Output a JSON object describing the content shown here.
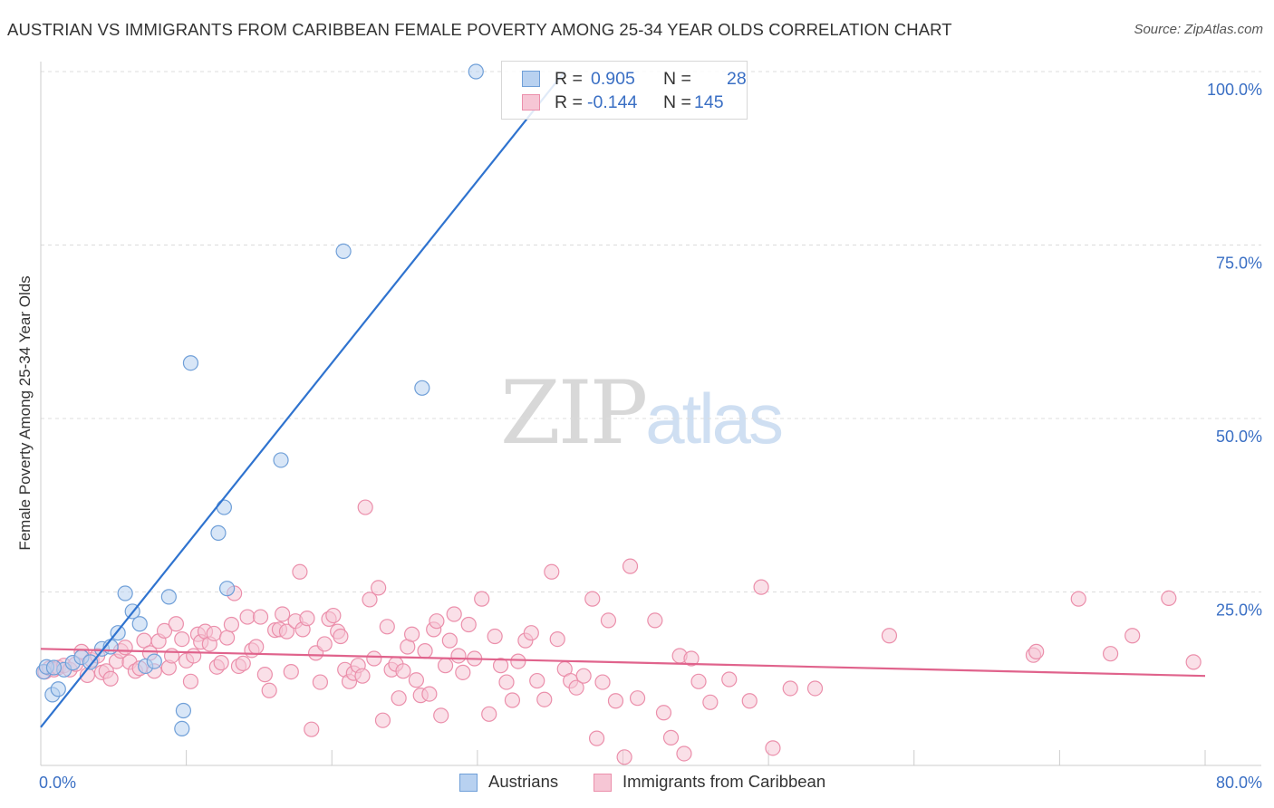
{
  "title": "AUSTRIAN VS IMMIGRANTS FROM CARIBBEAN FEMALE POVERTY AMONG 25-34 YEAR OLDS CORRELATION CHART",
  "source": "Source: ZipAtlas.com",
  "watermark": {
    "part1": "ZIP",
    "part2": "atlas"
  },
  "colors": {
    "blue": "#6f9fd8",
    "blue_fill": "#b8d1f0",
    "blue_line": "#2f73cf",
    "pink": "#eb8fab",
    "pink_fill": "#f6c6d5",
    "pink_line": "#e0638c",
    "grid": "#dcdcdc",
    "tick_label": "#3a6fc4"
  },
  "legend": {
    "rows": [
      {
        "r_label": "R =",
        "r_value": "0.905",
        "n_label": "N =",
        "n_value": "28"
      },
      {
        "r_label": "R =",
        "r_value": "-0.144",
        "n_label": "N =",
        "n_value": "145"
      }
    ]
  },
  "bottom_legend": {
    "austrians": "Austrians",
    "caribbean": "Immigrants from Caribbean"
  },
  "chart_data": {
    "type": "scatter",
    "title": "AUSTRIAN VS IMMIGRANTS FROM CARIBBEAN FEMALE POVERTY AMONG 25-34 YEAR OLDS CORRELATION CHART",
    "xlabel": "",
    "ylabel": "Female Poverty Among 25-34 Year Olds",
    "xlim": [
      0,
      80
    ],
    "ylim": [
      0,
      100
    ],
    "x_tick_labels": [
      "0.0%",
      "80.0%"
    ],
    "y_tick_labels": [
      "25.0%",
      "50.0%",
      "75.0%",
      "100.0%"
    ],
    "y_ticks": [
      25,
      50,
      75,
      100
    ],
    "grid": true,
    "legend_position": "top-center",
    "series": [
      {
        "name": "Austrians",
        "R": 0.905,
        "N": 28,
        "trend": {
          "x0": 0,
          "y0": 5.5,
          "x1": 36,
          "y1": 100
        },
        "points": [
          [
            0.2,
            13.5
          ],
          [
            0.4,
            14.2
          ],
          [
            0.8,
            10.2
          ],
          [
            1.2,
            11.0
          ],
          [
            1.6,
            13.8
          ],
          [
            2.2,
            14.8
          ],
          [
            2.8,
            15.6
          ],
          [
            3.4,
            14.9
          ],
          [
            4.2,
            16.8
          ],
          [
            4.8,
            17.1
          ],
          [
            5.3,
            19.1
          ],
          [
            5.8,
            24.8
          ],
          [
            6.3,
            22.2
          ],
          [
            6.8,
            20.4
          ],
          [
            7.2,
            14.3
          ],
          [
            7.8,
            15.0
          ],
          [
            8.8,
            24.3
          ],
          [
            9.8,
            7.9
          ],
          [
            9.7,
            5.3
          ],
          [
            10.3,
            58.0
          ],
          [
            12.2,
            33.5
          ],
          [
            12.6,
            37.2
          ],
          [
            12.8,
            25.5
          ],
          [
            16.5,
            44.0
          ],
          [
            20.8,
            74.1
          ],
          [
            26.2,
            54.4
          ],
          [
            29.9,
            100.0
          ],
          [
            0.9,
            14.1
          ]
        ]
      },
      {
        "name": "Immigrants from Caribbean",
        "R": -0.144,
        "N": 145,
        "trend": {
          "x0": 0,
          "y0": 16.8,
          "x1": 80,
          "y1": 12.9
        },
        "points": [
          [
            0.3,
            13.5
          ],
          [
            0.6,
            14.0
          ],
          [
            0.9,
            13.8
          ],
          [
            1.2,
            14.1
          ],
          [
            1.6,
            14.4
          ],
          [
            2.0,
            13.8
          ],
          [
            2.4,
            14.6
          ],
          [
            2.8,
            16.4
          ],
          [
            3.2,
            13.0
          ],
          [
            3.5,
            15.2
          ],
          [
            3.9,
            15.8
          ],
          [
            4.2,
            13.4
          ],
          [
            4.5,
            13.6
          ],
          [
            4.8,
            12.5
          ],
          [
            5.2,
            15.0
          ],
          [
            5.5,
            16.5
          ],
          [
            5.8,
            17.0
          ],
          [
            6.1,
            14.9
          ],
          [
            6.5,
            13.6
          ],
          [
            6.8,
            14.0
          ],
          [
            7.1,
            18.0
          ],
          [
            7.5,
            16.2
          ],
          [
            7.8,
            13.6
          ],
          [
            8.1,
            17.9
          ],
          [
            8.5,
            19.4
          ],
          [
            8.8,
            14.1
          ],
          [
            9.0,
            15.8
          ],
          [
            9.3,
            20.4
          ],
          [
            9.7,
            18.2
          ],
          [
            10.0,
            15.1
          ],
          [
            10.3,
            12.1
          ],
          [
            10.5,
            15.8
          ],
          [
            10.8,
            18.9
          ],
          [
            11.0,
            17.8
          ],
          [
            11.3,
            19.3
          ],
          [
            11.6,
            17.5
          ],
          [
            11.9,
            19.0
          ],
          [
            12.1,
            14.2
          ],
          [
            12.4,
            14.8
          ],
          [
            12.8,
            18.4
          ],
          [
            13.1,
            20.3
          ],
          [
            13.3,
            24.8
          ],
          [
            13.6,
            14.3
          ],
          [
            13.9,
            14.7
          ],
          [
            14.2,
            21.4
          ],
          [
            14.5,
            16.6
          ],
          [
            14.8,
            17.1
          ],
          [
            15.1,
            21.4
          ],
          [
            15.4,
            13.1
          ],
          [
            15.7,
            10.8
          ],
          [
            16.1,
            19.5
          ],
          [
            16.4,
            19.6
          ],
          [
            16.6,
            21.8
          ],
          [
            16.9,
            19.3
          ],
          [
            17.2,
            13.5
          ],
          [
            17.5,
            20.8
          ],
          [
            17.8,
            27.9
          ],
          [
            18.0,
            19.6
          ],
          [
            18.3,
            21.2
          ],
          [
            18.6,
            5.2
          ],
          [
            18.9,
            16.2
          ],
          [
            19.2,
            12.0
          ],
          [
            19.5,
            17.5
          ],
          [
            19.8,
            21.1
          ],
          [
            20.1,
            21.6
          ],
          [
            20.4,
            19.3
          ],
          [
            20.6,
            18.6
          ],
          [
            20.9,
            13.8
          ],
          [
            21.2,
            12.1
          ],
          [
            21.5,
            13.3
          ],
          [
            21.8,
            14.4
          ],
          [
            22.1,
            12.9
          ],
          [
            22.3,
            37.2
          ],
          [
            22.6,
            23.9
          ],
          [
            22.9,
            15.4
          ],
          [
            23.2,
            25.6
          ],
          [
            23.5,
            6.5
          ],
          [
            23.8,
            20.0
          ],
          [
            24.1,
            13.8
          ],
          [
            24.4,
            14.6
          ],
          [
            24.6,
            9.7
          ],
          [
            24.9,
            13.6
          ],
          [
            25.2,
            17.1
          ],
          [
            25.5,
            18.9
          ],
          [
            25.8,
            12.3
          ],
          [
            26.1,
            10.1
          ],
          [
            26.4,
            16.5
          ],
          [
            26.7,
            10.3
          ],
          [
            27.0,
            19.6
          ],
          [
            27.2,
            20.8
          ],
          [
            27.5,
            7.2
          ],
          [
            27.8,
            14.4
          ],
          [
            28.1,
            18.0
          ],
          [
            28.4,
            21.8
          ],
          [
            28.7,
            15.8
          ],
          [
            29.0,
            13.4
          ],
          [
            29.4,
            20.3
          ],
          [
            29.8,
            15.4
          ],
          [
            30.3,
            24.0
          ],
          [
            30.8,
            7.4
          ],
          [
            31.2,
            18.6
          ],
          [
            31.6,
            14.4
          ],
          [
            32.0,
            12.0
          ],
          [
            32.4,
            9.4
          ],
          [
            32.8,
            15.0
          ],
          [
            33.3,
            18.0
          ],
          [
            33.7,
            19.1
          ],
          [
            34.1,
            12.2
          ],
          [
            34.6,
            9.5
          ],
          [
            35.1,
            27.9
          ],
          [
            35.5,
            18.2
          ],
          [
            36.0,
            13.9
          ],
          [
            36.4,
            12.2
          ],
          [
            36.8,
            11.2
          ],
          [
            37.3,
            12.9
          ],
          [
            37.9,
            24.0
          ],
          [
            38.2,
            3.9
          ],
          [
            38.6,
            12.0
          ],
          [
            39.0,
            20.9
          ],
          [
            39.5,
            9.3
          ],
          [
            40.1,
            1.2
          ],
          [
            40.5,
            28.7
          ],
          [
            41.0,
            9.7
          ],
          [
            42.2,
            20.9
          ],
          [
            42.8,
            7.6
          ],
          [
            43.3,
            4.0
          ],
          [
            43.9,
            15.8
          ],
          [
            44.2,
            1.7
          ],
          [
            44.7,
            15.4
          ],
          [
            45.2,
            12.1
          ],
          [
            46.0,
            9.1
          ],
          [
            47.3,
            12.4
          ],
          [
            48.7,
            9.3
          ],
          [
            49.5,
            25.7
          ],
          [
            50.3,
            2.5
          ],
          [
            51.5,
            11.1
          ],
          [
            53.2,
            11.1
          ],
          [
            58.3,
            18.7
          ],
          [
            68.2,
            15.9
          ],
          [
            68.4,
            16.4
          ],
          [
            71.3,
            24.0
          ],
          [
            73.5,
            16.1
          ],
          [
            75.0,
            18.7
          ],
          [
            77.5,
            24.1
          ],
          [
            79.2,
            14.9
          ]
        ]
      }
    ]
  }
}
